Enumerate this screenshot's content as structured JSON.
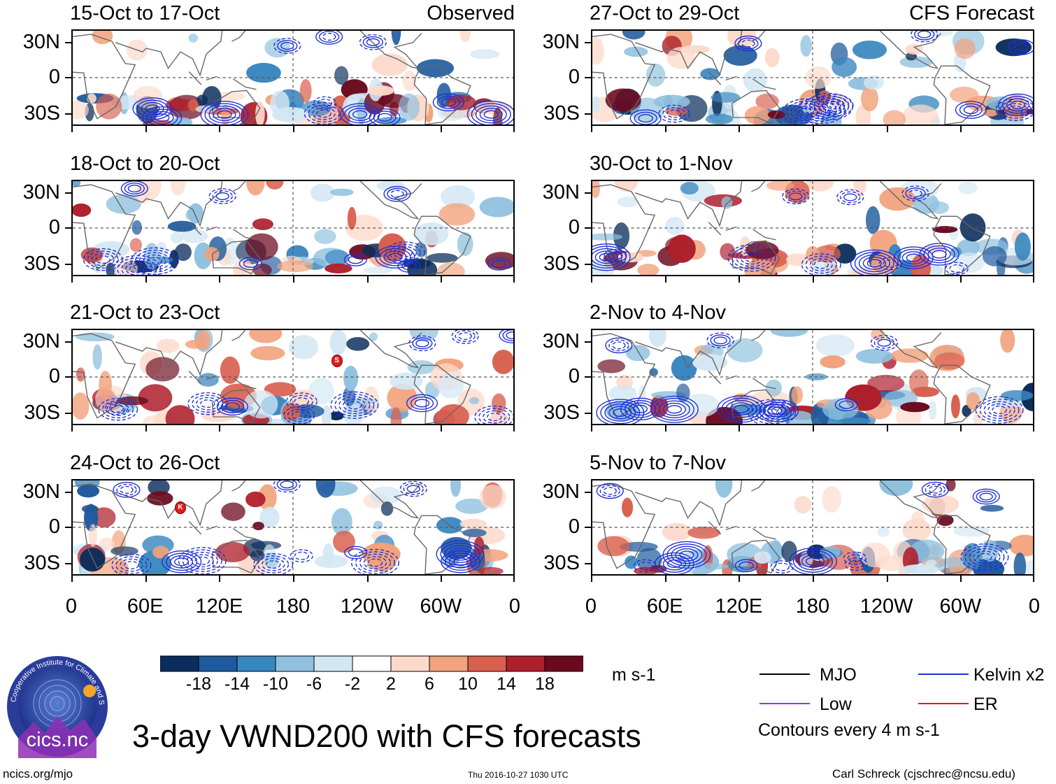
{
  "panels": [
    {
      "id": "p1",
      "title": "15-Oct to 17-Oct",
      "tag": "Observed",
      "col": 0,
      "row": 0,
      "seed": 3
    },
    {
      "id": "p2",
      "title": "18-Oct to 20-Oct",
      "tag": "",
      "col": 0,
      "row": 1,
      "seed": 7
    },
    {
      "id": "p3",
      "title": "21-Oct to 23-Oct",
      "tag": "",
      "col": 0,
      "row": 2,
      "seed": 11
    },
    {
      "id": "p4",
      "title": "24-Oct to 26-Oct",
      "tag": "",
      "col": 0,
      "row": 3,
      "seed": 17
    },
    {
      "id": "p5",
      "title": "27-Oct to 29-Oct",
      "tag": "CFS Forecast",
      "col": 1,
      "row": 0,
      "seed": 23
    },
    {
      "id": "p6",
      "title": "30-Oct to 1-Nov",
      "tag": "",
      "col": 1,
      "row": 1,
      "seed": 29
    },
    {
      "id": "p7",
      "title": "2-Nov to 4-Nov",
      "tag": "",
      "col": 1,
      "row": 2,
      "seed": 31
    },
    {
      "id": "p8",
      "title": "5-Nov to 7-Nov",
      "tag": "",
      "col": 1,
      "row": 3,
      "seed": 37
    }
  ],
  "y_ticks": [
    "30N",
    "0",
    "30S"
  ],
  "x_ticks": [
    "0",
    "60E",
    "120E",
    "180",
    "120W",
    "60W",
    "0"
  ],
  "storm_markers": [
    {
      "panel": "p3",
      "label": "S",
      "lon": 215,
      "lat": 14
    },
    {
      "panel": "p4",
      "label": "K",
      "lon": 88,
      "lat": 17
    }
  ],
  "colorbar": {
    "colors": [
      "#0b2d5b",
      "#1f5a9e",
      "#3a87c0",
      "#8fc1df",
      "#d3e7f3",
      "#ffffff",
      "#fcdacb",
      "#f2a27c",
      "#d95f4e",
      "#ae1f2c",
      "#6b0a1f"
    ],
    "labels": [
      "-18",
      "-14",
      "-10",
      "-6",
      "-2",
      "2",
      "6",
      "10",
      "14",
      "18"
    ],
    "units": "m s-1"
  },
  "legend": [
    {
      "label": "MJO",
      "color": "#000000"
    },
    {
      "label": "Kelvin x2",
      "color": "#1f2fd6"
    },
    {
      "label": "Low",
      "color": "#9a35d8"
    },
    {
      "label": "ER",
      "color": "#e01c1c"
    }
  ],
  "contour_note": "Contours every 4 m s-1",
  "main_title": "3-day VWND200 with CFS forecasts",
  "logo": {
    "ring_text": "Cooperative Institute for Climate and Satellites",
    "name": "cics.nc"
  },
  "footer": {
    "left": "ncics.org/mjo",
    "center": "Thu 2016-10-27 1030 UTC",
    "right": "Carl Schreck (cjschrec@ncsu.edu)"
  }
}
